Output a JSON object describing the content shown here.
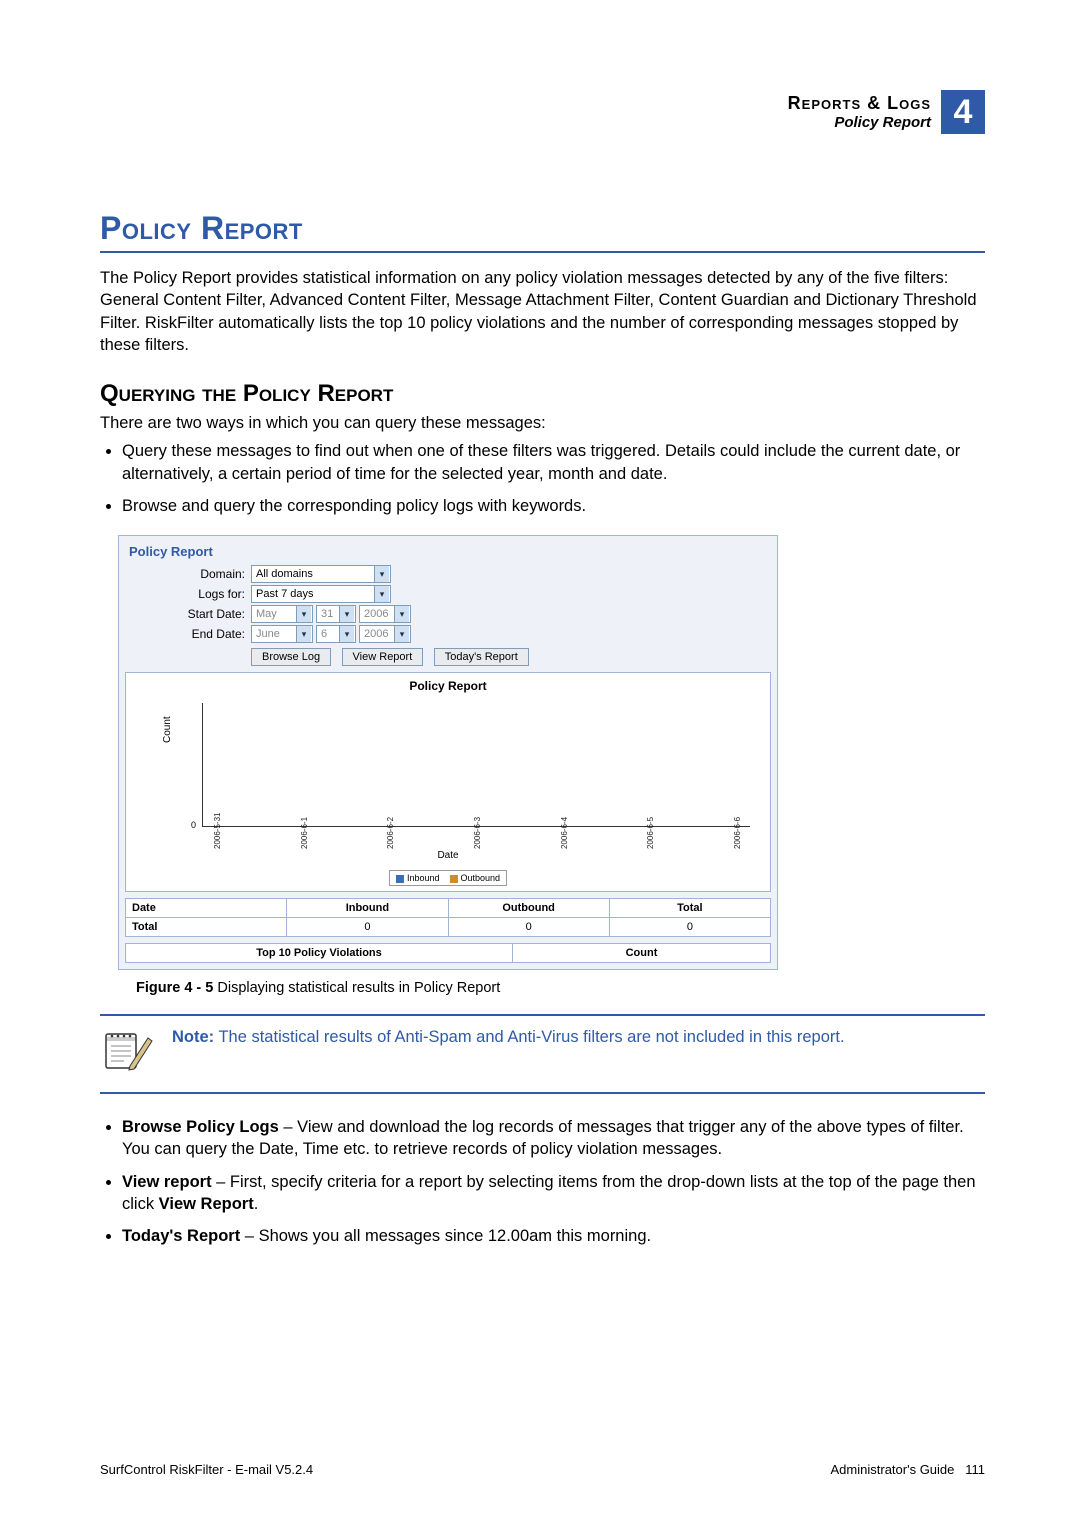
{
  "header": {
    "line1": "Reports & Logs",
    "line2": "Policy Report",
    "chapter": "4"
  },
  "section_title": "Policy Report",
  "intro_paragraph": "The Policy Report provides statistical information on any policy violation messages detected by any of the five filters: General Content Filter, Advanced Content Filter, Message Attachment Filter, Content Guardian and Dictionary Threshold Filter. RiskFilter automatically lists the top 10 policy violations and the number of corresponding messages stopped by these filters.",
  "subsection_title": "Querying the Policy Report",
  "sub_intro": "There are two ways in which you can query these messages:",
  "query_bullets": [
    "Query these messages to find out when one of these filters was triggered. Details could include the current date, or alternatively, a certain period of time for the selected year, month and date.",
    "Browse and query the corresponding policy logs with keywords."
  ],
  "figure": {
    "panel_title": "Policy Report",
    "form": {
      "domain_label": "Domain:",
      "domain_value": "All domains",
      "logsfor_label": "Logs for:",
      "logsfor_value": "Past 7 days",
      "start_label": "Start Date:",
      "start_month": "May",
      "start_day": "31",
      "start_year": "2006",
      "end_label": "End Date:",
      "end_month": "June",
      "end_day": "6",
      "end_year": "2006",
      "btn_browse": "Browse Log",
      "btn_view": "View Report",
      "btn_today": "Today's Report"
    },
    "chart": {
      "title": "Policy Report",
      "ylabel": "Count",
      "xlabel": "Date",
      "y_tick": "0",
      "x_ticks": [
        "2006-5-31",
        "2006-6-1",
        "2006-6-2",
        "2006-6-3",
        "2006-6-4",
        "2006-6-5",
        "2006-6-6"
      ],
      "legend": [
        {
          "label": "Inbound",
          "color": "#3a6fb7"
        },
        {
          "label": "Outbound",
          "color": "#d08a2a"
        }
      ]
    },
    "summary_table": {
      "headers": [
        "Date",
        "Inbound",
        "Outbound",
        "Total"
      ],
      "rows": [
        [
          "Total",
          "0",
          "0",
          "0"
        ]
      ]
    },
    "top10_headers": [
      "Top 10 Policy Violations",
      "Count"
    ]
  },
  "figcaption_bold": "Figure 4 - 5",
  "figcaption_rest": " Displaying statistical results in Policy Report",
  "note": {
    "label": "Note:",
    "text": "  The statistical results of Anti-Spam and Anti-Virus filters are not included in this report."
  },
  "action_bullets": [
    {
      "bold": "Browse Policy Logs",
      "rest": " – View and download the log records of messages that trigger any of the above types of filter. You can query the Date, Time etc. to retrieve records of policy violation messages."
    },
    {
      "bold": "View report",
      "rest_before": " – First, specify criteria for a report by selecting items from the drop-down lists at the top of the page then click ",
      "bold2": "View Report",
      "rest_after": "."
    },
    {
      "bold": "Today's Report",
      "rest": " – Shows you all messages since 12.00am this morning."
    }
  ],
  "footer": {
    "left": "SurfControl RiskFilter - E-mail V5.2.4",
    "right_label": "Administrator's Guide",
    "right_page": "111"
  }
}
